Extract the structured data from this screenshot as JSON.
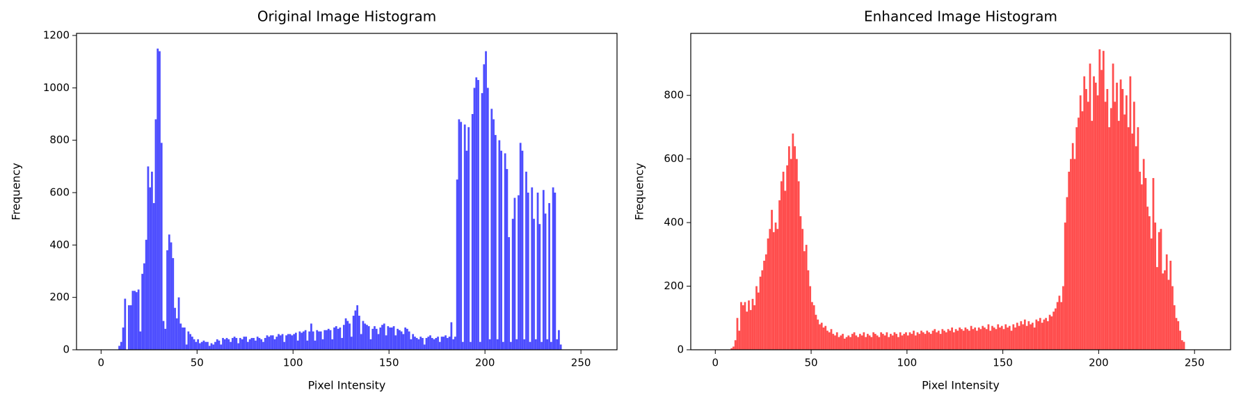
{
  "chart_data": [
    {
      "type": "histogram",
      "title": "Original Image Histogram",
      "xlabel": "Pixel Intensity",
      "ylabel": "Frequency",
      "color": "#4d4dff",
      "bins": [
        0,
        1,
        2,
        3,
        4,
        5,
        6,
        7,
        8,
        9,
        10,
        11,
        12,
        13,
        14,
        15,
        16,
        17,
        18,
        19,
        20,
        21,
        22,
        23,
        24,
        25,
        26,
        27,
        28,
        29,
        30,
        31,
        32,
        33,
        34,
        35,
        36,
        37,
        38,
        39,
        40,
        41,
        42,
        43,
        44,
        45,
        46,
        47,
        48,
        49,
        50,
        51,
        52,
        53,
        54,
        55,
        56,
        57,
        58,
        59,
        60,
        61,
        62,
        63,
        64,
        65,
        66,
        67,
        68,
        69,
        70,
        71,
        72,
        73,
        74,
        75,
        76,
        77,
        78,
        79,
        80,
        81,
        82,
        83,
        84,
        85,
        86,
        87,
        88,
        89,
        90,
        91,
        92,
        93,
        94,
        95,
        96,
        97,
        98,
        99,
        100,
        101,
        102,
        103,
        104,
        105,
        106,
        107,
        108,
        109,
        110,
        111,
        112,
        113,
        114,
        115,
        116,
        117,
        118,
        119,
        120,
        121,
        122,
        123,
        124,
        125,
        126,
        127,
        128,
        129,
        130,
        131,
        132,
        133,
        134,
        135,
        136,
        137,
        138,
        139,
        140,
        141,
        142,
        143,
        144,
        145,
        146,
        147,
        148,
        149,
        150,
        151,
        152,
        153,
        154,
        155,
        156,
        157,
        158,
        159,
        160,
        161,
        162,
        163,
        164,
        165,
        166,
        167,
        168,
        169,
        170,
        171,
        172,
        173,
        174,
        175,
        176,
        177,
        178,
        179,
        180,
        181,
        182,
        183,
        184,
        185,
        186,
        187,
        188,
        189,
        190,
        191,
        192,
        193,
        194,
        195,
        196,
        197,
        198,
        199,
        200,
        201,
        202,
        203,
        204,
        205,
        206,
        207,
        208,
        209,
        210,
        211,
        212,
        213,
        214,
        215,
        216,
        217,
        218,
        219,
        220,
        221,
        222,
        223,
        224,
        225,
        226,
        227,
        228,
        229,
        230,
        231,
        232,
        233,
        234,
        235,
        236,
        237,
        238,
        239,
        240,
        241,
        242,
        243,
        244,
        245,
        246,
        247,
        248,
        249,
        250,
        251,
        252,
        253,
        254,
        255,
        256
      ],
      "counts": [
        0,
        0,
        0,
        0,
        0,
        0,
        0,
        0,
        0,
        15,
        30,
        85,
        195,
        0,
        170,
        170,
        225,
        225,
        220,
        230,
        70,
        290,
        330,
        420,
        700,
        620,
        680,
        560,
        880,
        1150,
        1140,
        790,
        110,
        80,
        380,
        440,
        410,
        350,
        160,
        120,
        200,
        100,
        85,
        85,
        20,
        70,
        60,
        50,
        40,
        30,
        40,
        25,
        30,
        35,
        30,
        30,
        15,
        25,
        20,
        30,
        40,
        35,
        20,
        45,
        40,
        45,
        40,
        30,
        45,
        50,
        45,
        25,
        45,
        40,
        50,
        50,
        30,
        40,
        45,
        45,
        35,
        50,
        45,
        40,
        30,
        45,
        55,
        50,
        55,
        55,
        40,
        50,
        60,
        55,
        60,
        30,
        55,
        60,
        60,
        55,
        60,
        65,
        35,
        70,
        65,
        70,
        75,
        35,
        70,
        100,
        70,
        35,
        75,
        70,
        70,
        40,
        75,
        75,
        80,
        75,
        40,
        85,
        90,
        80,
        85,
        45,
        95,
        120,
        110,
        100,
        50,
        130,
        150,
        170,
        130,
        60,
        110,
        100,
        95,
        90,
        40,
        80,
        90,
        80,
        60,
        85,
        95,
        100,
        55,
        90,
        85,
        85,
        90,
        55,
        80,
        75,
        70,
        60,
        85,
        80,
        70,
        40,
        60,
        50,
        45,
        40,
        50,
        45,
        20,
        45,
        50,
        55,
        45,
        40,
        45,
        50,
        30,
        50,
        50,
        55,
        45,
        50,
        105,
        40,
        50,
        650,
        880,
        870,
        30,
        860,
        760,
        850,
        30,
        900,
        1000,
        1040,
        1030,
        30,
        980,
        1090,
        1140,
        1000,
        40,
        920,
        880,
        820,
        40,
        800,
        760,
        30,
        750,
        690,
        430,
        30,
        500,
        580,
        40,
        590,
        790,
        760,
        40,
        680,
        600,
        30,
        620,
        500,
        40,
        600,
        480,
        30,
        610,
        520,
        40,
        560,
        30,
        620,
        600,
        40,
        75,
        20,
        0,
        0,
        0,
        0,
        0,
        0,
        0,
        0,
        0,
        0,
        0,
        0,
        0,
        0,
        0,
        0
      ],
      "xlim": [
        -12.8,
        268.8
      ],
      "ylim": [
        0,
        1208
      ],
      "xticks": [
        0,
        50,
        100,
        150,
        200,
        250
      ],
      "yticks": [
        0,
        200,
        400,
        600,
        800,
        1000,
        1200
      ]
    },
    {
      "type": "histogram",
      "title": "Enhanced Image Histogram",
      "xlabel": "Pixel Intensity",
      "ylabel": "Frequency",
      "color": "#ff4d4d",
      "bins": [
        0,
        1,
        2,
        3,
        4,
        5,
        6,
        7,
        8,
        9,
        10,
        11,
        12,
        13,
        14,
        15,
        16,
        17,
        18,
        19,
        20,
        21,
        22,
        23,
        24,
        25,
        26,
        27,
        28,
        29,
        30,
        31,
        32,
        33,
        34,
        35,
        36,
        37,
        38,
        39,
        40,
        41,
        42,
        43,
        44,
        45,
        46,
        47,
        48,
        49,
        50,
        51,
        52,
        53,
        54,
        55,
        56,
        57,
        58,
        59,
        60,
        61,
        62,
        63,
        64,
        65,
        66,
        67,
        68,
        69,
        70,
        71,
        72,
        73,
        74,
        75,
        76,
        77,
        78,
        79,
        80,
        81,
        82,
        83,
        84,
        85,
        86,
        87,
        88,
        89,
        90,
        91,
        92,
        93,
        94,
        95,
        96,
        97,
        98,
        99,
        100,
        101,
        102,
        103,
        104,
        105,
        106,
        107,
        108,
        109,
        110,
        111,
        112,
        113,
        114,
        115,
        116,
        117,
        118,
        119,
        120,
        121,
        122,
        123,
        124,
        125,
        126,
        127,
        128,
        129,
        130,
        131,
        132,
        133,
        134,
        135,
        136,
        137,
        138,
        139,
        140,
        141,
        142,
        143,
        144,
        145,
        146,
        147,
        148,
        149,
        150,
        151,
        152,
        153,
        154,
        155,
        156,
        157,
        158,
        159,
        160,
        161,
        162,
        163,
        164,
        165,
        166,
        167,
        168,
        169,
        170,
        171,
        172,
        173,
        174,
        175,
        176,
        177,
        178,
        179,
        180,
        181,
        182,
        183,
        184,
        185,
        186,
        187,
        188,
        189,
        190,
        191,
        192,
        193,
        194,
        195,
        196,
        197,
        198,
        199,
        200,
        201,
        202,
        203,
        204,
        205,
        206,
        207,
        208,
        209,
        210,
        211,
        212,
        213,
        214,
        215,
        216,
        217,
        218,
        219,
        220,
        221,
        222,
        223,
        224,
        225,
        226,
        227,
        228,
        229,
        230,
        231,
        232,
        233,
        234,
        235,
        236,
        237,
        238,
        239,
        240,
        241,
        242,
        243,
        244,
        245,
        246,
        247,
        248,
        249,
        250,
        251,
        252,
        253,
        254,
        255,
        256
      ],
      "counts": [
        0,
        0,
        0,
        0,
        0,
        0,
        0,
        0,
        5,
        10,
        30,
        100,
        60,
        150,
        140,
        150,
        120,
        155,
        125,
        160,
        140,
        200,
        180,
        230,
        250,
        280,
        300,
        350,
        380,
        440,
        370,
        400,
        380,
        470,
        530,
        560,
        500,
        580,
        640,
        600,
        680,
        640,
        600,
        530,
        420,
        380,
        310,
        330,
        250,
        200,
        150,
        140,
        110,
        95,
        80,
        85,
        70,
        75,
        60,
        55,
        65,
        50,
        45,
        55,
        40,
        45,
        50,
        35,
        40,
        45,
        40,
        50,
        55,
        45,
        40,
        50,
        45,
        55,
        40,
        50,
        45,
        40,
        55,
        50,
        45,
        40,
        55,
        50,
        45,
        55,
        40,
        50,
        45,
        55,
        50,
        40,
        55,
        45,
        50,
        55,
        45,
        55,
        50,
        60,
        45,
        55,
        50,
        60,
        55,
        50,
        60,
        55,
        50,
        60,
        65,
        55,
        60,
        50,
        65,
        60,
        55,
        65,
        60,
        70,
        55,
        65,
        60,
        70,
        65,
        60,
        70,
        65,
        60,
        75,
        65,
        70,
        60,
        70,
        65,
        75,
        70,
        65,
        80,
        60,
        75,
        70,
        65,
        80,
        70,
        75,
        65,
        80,
        70,
        75,
        60,
        80,
        70,
        85,
        75,
        90,
        80,
        95,
        75,
        90,
        80,
        85,
        70,
        95,
        90,
        100,
        85,
        95,
        100,
        90,
        110,
        105,
        120,
        130,
        150,
        170,
        150,
        200,
        400,
        480,
        560,
        600,
        650,
        600,
        700,
        730,
        800,
        750,
        860,
        820,
        780,
        900,
        720,
        860,
        840,
        800,
        945,
        880,
        940,
        780,
        820,
        700,
        760,
        900,
        780,
        840,
        720,
        850,
        820,
        740,
        800,
        700,
        860,
        680,
        780,
        640,
        700,
        560,
        520,
        600,
        540,
        450,
        420,
        350,
        540,
        400,
        260,
        370,
        380,
        240,
        250,
        300,
        220,
        280,
        200,
        140,
        100,
        90,
        60,
        30,
        25,
        0,
        0,
        0,
        0,
        0,
        0,
        0,
        0,
        0,
        0,
        0
      ],
      "xlim": [
        -12.8,
        268.8
      ],
      "ylim": [
        0,
        995
      ],
      "xticks": [
        0,
        50,
        100,
        150,
        200,
        250
      ],
      "yticks": [
        0,
        200,
        400,
        600,
        800
      ]
    }
  ]
}
